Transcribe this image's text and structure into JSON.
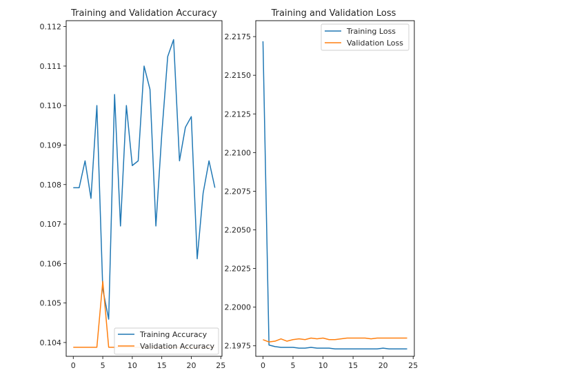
{
  "chart_data": [
    {
      "type": "line",
      "title": "Training and Validation Accuracy",
      "xlabel": "",
      "ylabel": "",
      "xlim": [
        -1.2,
        25.2
      ],
      "ylim": [
        0.10365,
        0.11215
      ],
      "xticks": [
        0,
        5,
        10,
        15,
        20,
        25
      ],
      "yticks": [
        0.104,
        0.105,
        0.106,
        0.107,
        0.108,
        0.109,
        0.11,
        0.111,
        0.112
      ],
      "ytick_labels": [
        "0.104",
        "0.105",
        "0.106",
        "0.107",
        "0.108",
        "0.109",
        "0.110",
        "0.111",
        "0.112"
      ],
      "grid": false,
      "legend_position": "lower right",
      "x": [
        0,
        1,
        2,
        3,
        4,
        5,
        6,
        7,
        8,
        9,
        10,
        11,
        12,
        13,
        14,
        15,
        16,
        17,
        18,
        19,
        20,
        21,
        22,
        23,
        24
      ],
      "series": [
        {
          "name": "Training Accuracy",
          "color": "#1f77b4",
          "values": [
            0.10792,
            0.10792,
            0.1086,
            0.10765,
            0.11,
            0.10535,
            0.10459,
            0.11028,
            0.10695,
            0.11,
            0.10848,
            0.1086,
            0.111,
            0.11041,
            0.10695,
            0.10928,
            0.11124,
            0.11167,
            0.1086,
            0.10945,
            0.10972,
            0.10612,
            0.10778,
            0.1086,
            0.10792
          ]
        },
        {
          "name": "Validation Accuracy",
          "color": "#ff7f0e",
          "values": [
            0.10388,
            0.10388,
            0.10388,
            0.10388,
            0.10388,
            0.10555,
            0.10388,
            0.10388,
            0.10388,
            0.10388,
            0.10388,
            0.10388,
            0.10388,
            0.10388,
            0.10388,
            0.10388,
            0.10388,
            0.10388,
            0.10388,
            0.10388,
            0.10388,
            0.10388,
            0.10388,
            0.10388,
            0.10388
          ]
        }
      ]
    },
    {
      "type": "line",
      "title": "Training and Validation Loss",
      "xlabel": "",
      "ylabel": "",
      "xlim": [
        -1.2,
        25.2
      ],
      "ylim": [
        2.19682,
        2.21853
      ],
      "xticks": [
        0,
        5,
        10,
        15,
        20,
        25
      ],
      "yticks": [
        2.1975,
        2.2,
        2.2025,
        2.205,
        2.2075,
        2.21,
        2.2125,
        2.215,
        2.2175
      ],
      "ytick_labels": [
        "2.1975",
        "2.2000",
        "2.2025",
        "2.2050",
        "2.2075",
        "2.2100",
        "2.2125",
        "2.2150",
        "2.2175"
      ],
      "grid": false,
      "legend_position": "upper right",
      "x": [
        0,
        1,
        2,
        3,
        4,
        5,
        6,
        7,
        8,
        9,
        10,
        11,
        12,
        13,
        14,
        15,
        16,
        17,
        18,
        19,
        20,
        21,
        22,
        23,
        24
      ],
      "series": [
        {
          "name": "Training Loss",
          "color": "#1f77b4",
          "values": [
            2.2172,
            2.19755,
            2.19745,
            2.1974,
            2.1974,
            2.1974,
            2.19735,
            2.19735,
            2.1974,
            2.19735,
            2.19735,
            2.19735,
            2.1973,
            2.1973,
            2.1973,
            2.1973,
            2.1973,
            2.1973,
            2.1973,
            2.1973,
            2.19735,
            2.1973,
            2.1973,
            2.1973,
            2.1973
          ]
        },
        {
          "name": "Validation Loss",
          "color": "#ff7f0e",
          "values": [
            2.1979,
            2.19775,
            2.1978,
            2.19795,
            2.1978,
            2.1979,
            2.19795,
            2.1979,
            2.198,
            2.19795,
            2.198,
            2.1979,
            2.1979,
            2.19795,
            2.198,
            2.198,
            2.198,
            2.198,
            2.19795,
            2.198,
            2.198,
            2.198,
            2.198,
            2.198,
            2.198
          ]
        }
      ]
    }
  ]
}
